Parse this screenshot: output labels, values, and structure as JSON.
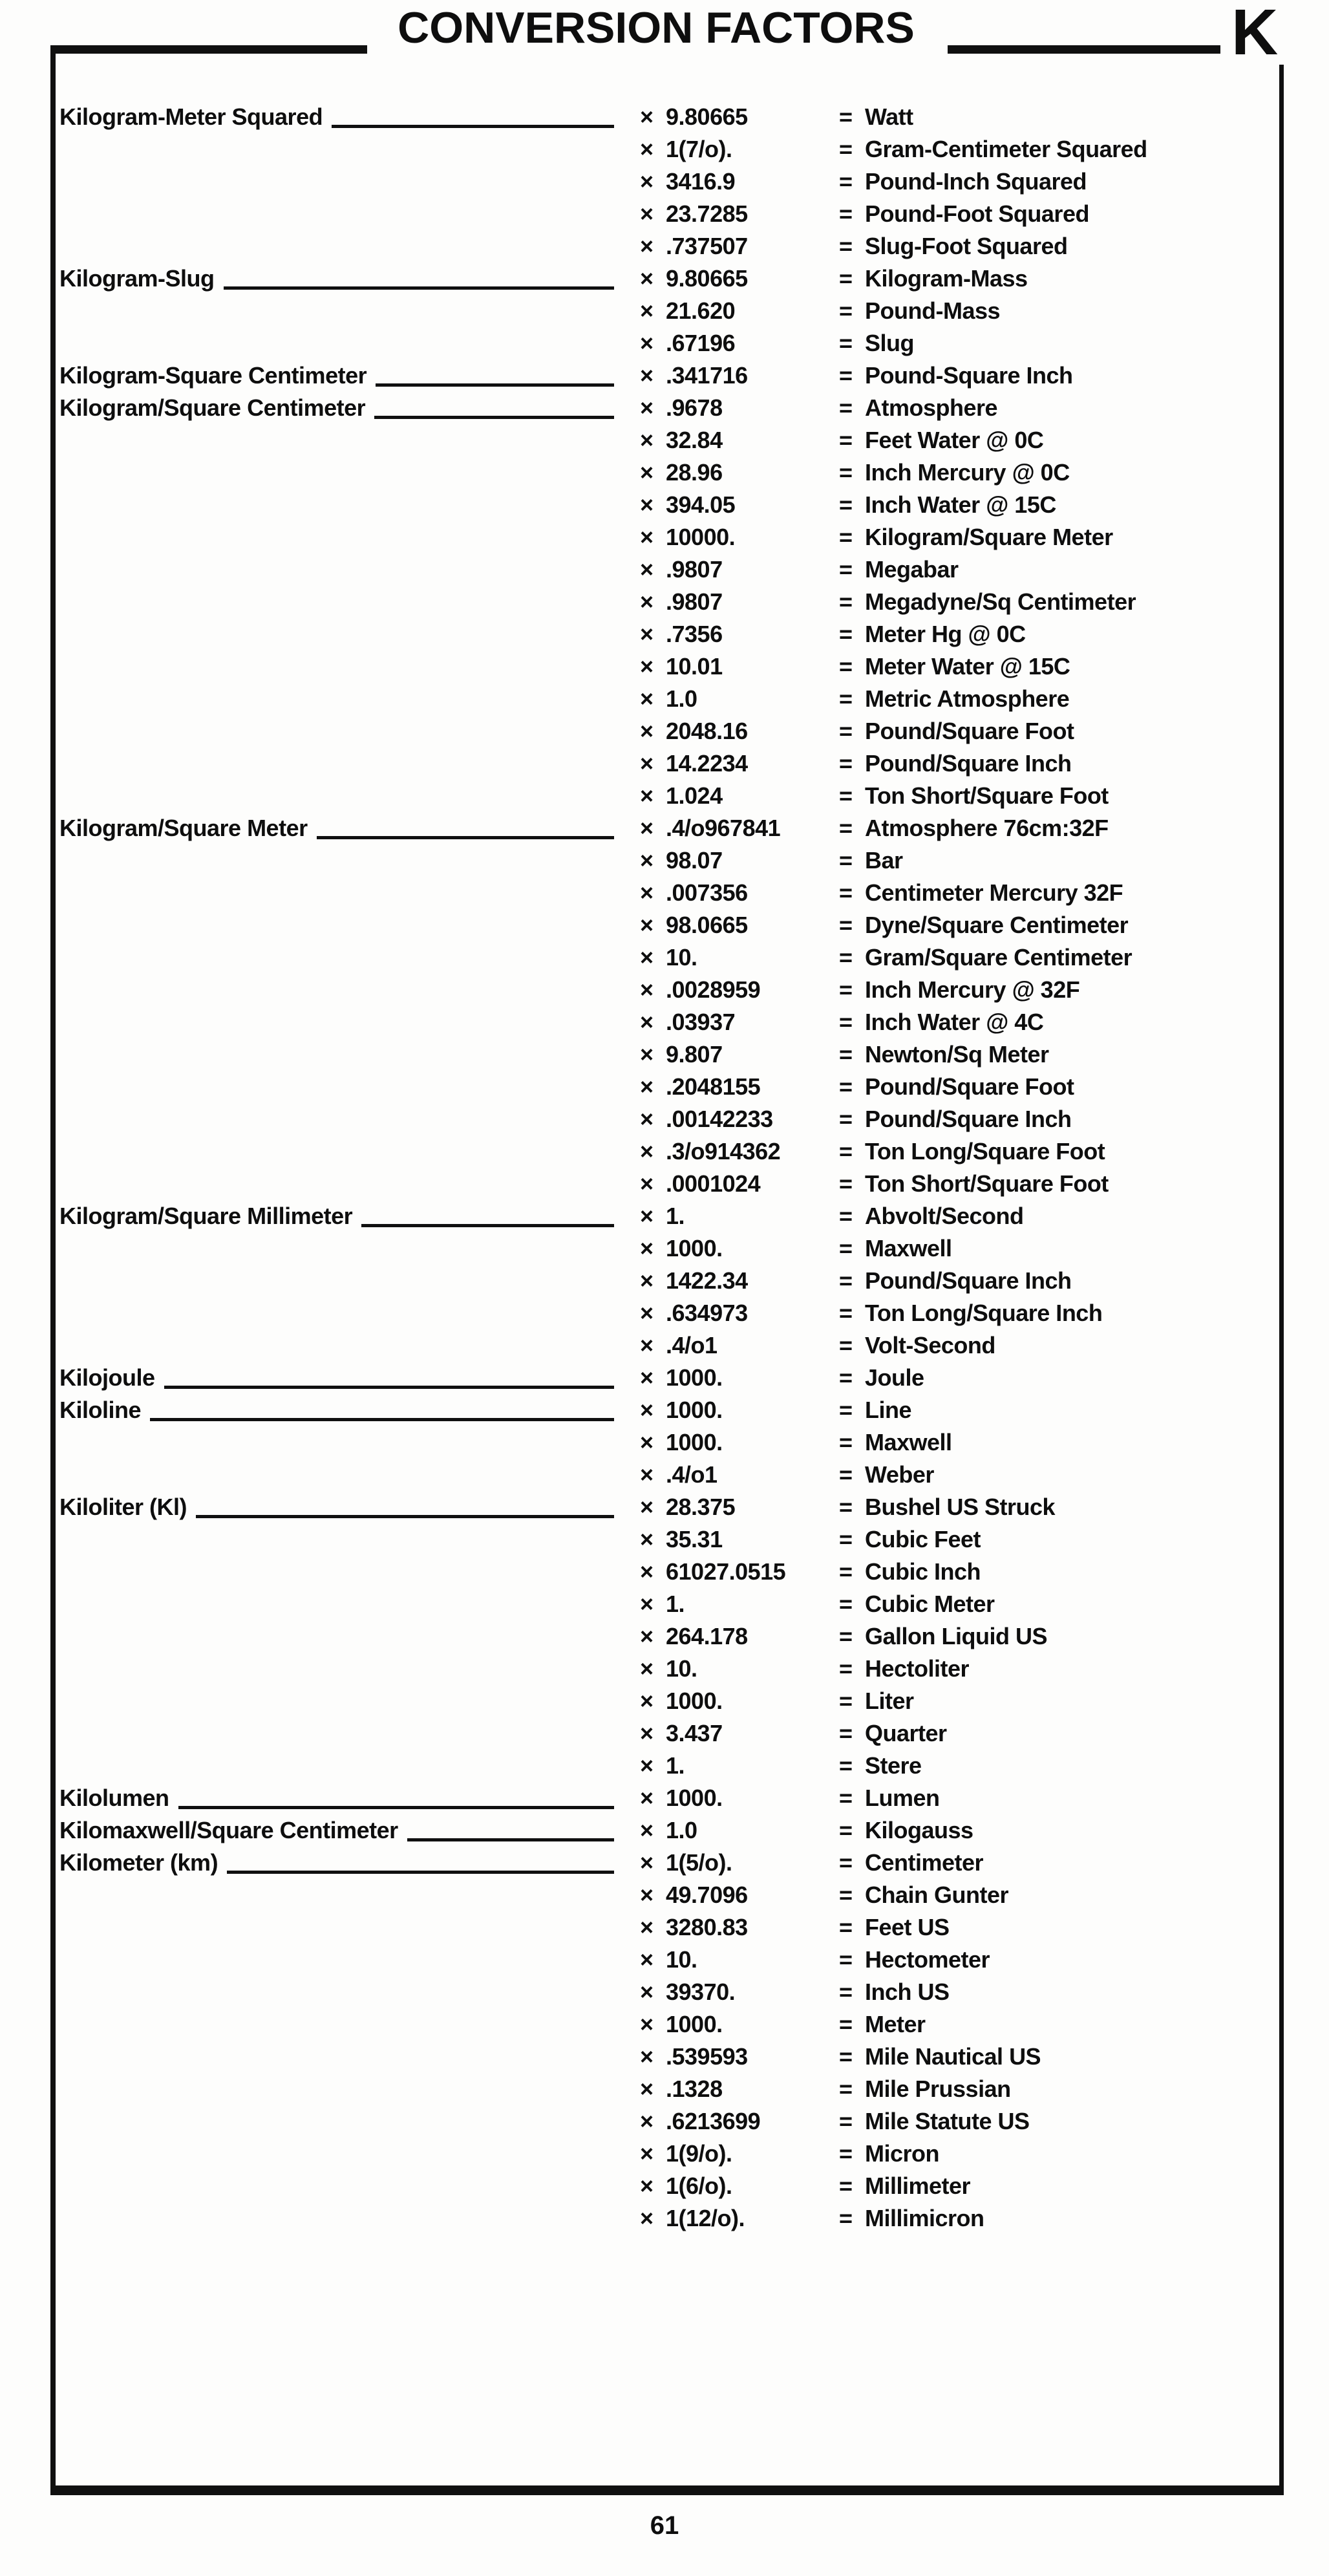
{
  "page": {
    "title": "CONVERSION FACTORS",
    "section_letter": "K",
    "page_number": "61"
  },
  "symbols": {
    "multiply": "×",
    "equals": "="
  },
  "groups": [
    {
      "unit": "Kilogram-Meter Squared",
      "rows": [
        {
          "factor": "9.80665",
          "result": "Watt"
        },
        {
          "factor": "1(7/o).",
          "result": "Gram-Centimeter Squared"
        },
        {
          "factor": "3416.9",
          "result": "Pound-Inch Squared"
        },
        {
          "factor": "23.7285",
          "result": "Pound-Foot Squared"
        },
        {
          "factor": ".737507",
          "result": "Slug-Foot Squared"
        }
      ]
    },
    {
      "unit": "Kilogram-Slug",
      "rows": [
        {
          "factor": "9.80665",
          "result": "Kilogram-Mass"
        },
        {
          "factor": "21.620",
          "result": "Pound-Mass"
        },
        {
          "factor": ".67196",
          "result": "Slug"
        }
      ]
    },
    {
      "unit": "Kilogram-Square Centimeter",
      "rows": [
        {
          "factor": ".341716",
          "result": "Pound-Square Inch"
        }
      ]
    },
    {
      "unit": "Kilogram/Square Centimeter",
      "rows": [
        {
          "factor": ".9678",
          "result": "Atmosphere"
        },
        {
          "factor": "32.84",
          "result": "Feet Water @ 0C"
        },
        {
          "factor": "28.96",
          "result": "Inch Mercury @ 0C"
        },
        {
          "factor": "394.05",
          "result": "Inch Water @ 15C"
        },
        {
          "factor": "10000.",
          "result": "Kilogram/Square Meter"
        },
        {
          "factor": ".9807",
          "result": "Megabar"
        },
        {
          "factor": ".9807",
          "result": "Megadyne/Sq Centimeter"
        },
        {
          "factor": ".7356",
          "result": "Meter Hg @ 0C"
        },
        {
          "factor": "10.01",
          "result": "Meter Water @ 15C"
        },
        {
          "factor": "1.0",
          "result": "Metric Atmosphere"
        },
        {
          "factor": "2048.16",
          "result": "Pound/Square Foot"
        },
        {
          "factor": "14.2234",
          "result": "Pound/Square Inch"
        },
        {
          "factor": "1.024",
          "result": "Ton Short/Square Foot"
        }
      ]
    },
    {
      "unit": "Kilogram/Square Meter",
      "rows": [
        {
          "factor": ".4/o967841",
          "result": "Atmosphere 76cm:32F"
        },
        {
          "factor": "98.07",
          "result": "Bar"
        },
        {
          "factor": ".007356",
          "result": "Centimeter Mercury 32F"
        },
        {
          "factor": "98.0665",
          "result": "Dyne/Square Centimeter"
        },
        {
          "factor": "10.",
          "result": "Gram/Square Centimeter"
        },
        {
          "factor": ".0028959",
          "result": "Inch Mercury @ 32F"
        },
        {
          "factor": ".03937",
          "result": "Inch Water @ 4C"
        },
        {
          "factor": "9.807",
          "result": "Newton/Sq Meter"
        },
        {
          "factor": ".2048155",
          "result": "Pound/Square Foot"
        },
        {
          "factor": ".00142233",
          "result": "Pound/Square Inch"
        },
        {
          "factor": ".3/o914362",
          "result": "Ton Long/Square Foot"
        },
        {
          "factor": ".0001024",
          "result": "Ton Short/Square Foot"
        }
      ]
    },
    {
      "unit": "Kilogram/Square Millimeter",
      "rows": [
        {
          "factor": "1.",
          "result": "Abvolt/Second"
        },
        {
          "factor": "1000.",
          "result": "Maxwell"
        },
        {
          "factor": "1422.34",
          "result": "Pound/Square Inch"
        },
        {
          "factor": ".634973",
          "result": "Ton Long/Square Inch"
        },
        {
          "factor": ".4/o1",
          "result": "Volt-Second"
        }
      ]
    },
    {
      "unit": "Kilojoule",
      "rows": [
        {
          "factor": "1000.",
          "result": "Joule"
        }
      ]
    },
    {
      "unit": "Kiloline",
      "rows": [
        {
          "factor": "1000.",
          "result": "Line"
        },
        {
          "factor": "1000.",
          "result": "Maxwell"
        },
        {
          "factor": ".4/o1",
          "result": "Weber"
        }
      ]
    },
    {
      "unit": "Kiloliter (Kl)",
      "rows": [
        {
          "factor": "28.375",
          "result": "Bushel US Struck"
        },
        {
          "factor": "35.31",
          "result": "Cubic Feet"
        },
        {
          "factor": "61027.0515",
          "result": "Cubic Inch"
        },
        {
          "factor": "1.",
          "result": "Cubic Meter"
        },
        {
          "factor": "264.178",
          "result": "Gallon Liquid US"
        },
        {
          "factor": "10.",
          "result": "Hectoliter"
        },
        {
          "factor": "1000.",
          "result": "Liter"
        },
        {
          "factor": "3.437",
          "result": "Quarter"
        },
        {
          "factor": "1.",
          "result": "Stere"
        }
      ]
    },
    {
      "unit": "Kilolumen",
      "rows": [
        {
          "factor": "1000.",
          "result": "Lumen"
        }
      ]
    },
    {
      "unit": "Kilomaxwell/Square Centimeter",
      "rows": [
        {
          "factor": "1.0",
          "result": "Kilogauss"
        }
      ]
    },
    {
      "unit": "Kilometer (km)",
      "rows": [
        {
          "factor": "1(5/o).",
          "result": "Centimeter"
        },
        {
          "factor": "49.7096",
          "result": "Chain Gunter"
        },
        {
          "factor": "3280.83",
          "result": "Feet US"
        },
        {
          "factor": "10.",
          "result": "Hectometer"
        },
        {
          "factor": "39370.",
          "result": "Inch US"
        },
        {
          "factor": "1000.",
          "result": "Meter"
        },
        {
          "factor": ".539593",
          "result": "Mile Nautical US"
        },
        {
          "factor": ".1328",
          "result": "Mile Prussian"
        },
        {
          "factor": ".6213699",
          "result": "Mile Statute US"
        },
        {
          "factor": "1(9/o).",
          "result": "Micron"
        },
        {
          "factor": "1(6/o).",
          "result": "Millimeter"
        },
        {
          "factor": "1(12/o).",
          "result": "Millimicron"
        }
      ]
    }
  ]
}
